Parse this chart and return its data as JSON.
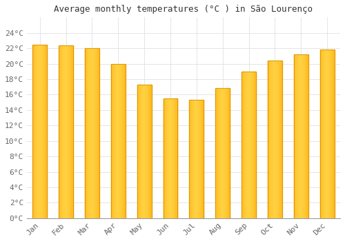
{
  "title": "Average monthly temperatures (°C ) in São Lourenço",
  "months": [
    "Jan",
    "Feb",
    "Mar",
    "Apr",
    "May",
    "Jun",
    "Jul",
    "Aug",
    "Sep",
    "Oct",
    "Nov",
    "Dec"
  ],
  "values": [
    22.5,
    22.4,
    22.0,
    20.0,
    17.3,
    15.5,
    15.3,
    16.8,
    19.0,
    20.4,
    21.2,
    21.8
  ],
  "bar_color_left": "#FFA500",
  "bar_color_center": "#FFD040",
  "bar_color_right": "#FFA500",
  "background_color": "#FFFFFF",
  "grid_color": "#E0E0E0",
  "title_fontsize": 9,
  "tick_fontsize": 8,
  "ylim": [
    0,
    26
  ],
  "yticks": [
    0,
    2,
    4,
    6,
    8,
    10,
    12,
    14,
    16,
    18,
    20,
    22,
    24
  ],
  "bar_width": 0.55
}
